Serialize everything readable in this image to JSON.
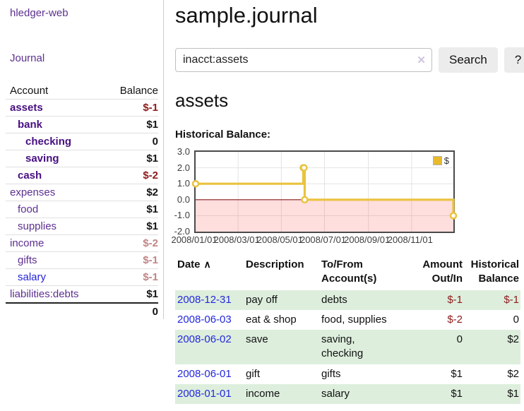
{
  "app": {
    "brand": "hledger-web"
  },
  "sidebar": {
    "journal_link": "Journal",
    "col_account": "Account",
    "col_balance": "Balance",
    "accounts": [
      {
        "name": "assets",
        "level": 1,
        "bold": true,
        "color": "purple",
        "balance": "$-1",
        "tone": "neg-dark"
      },
      {
        "name": "bank",
        "level": 2,
        "bold": true,
        "color": "purple",
        "balance": "$1",
        "tone": "default"
      },
      {
        "name": "checking",
        "level": 3,
        "bold": true,
        "color": "purple",
        "balance": "0",
        "tone": "default"
      },
      {
        "name": "saving",
        "level": 3,
        "bold": true,
        "color": "purple",
        "balance": "$1",
        "tone": "default"
      },
      {
        "name": "cash",
        "level": 2,
        "bold": true,
        "color": "purple",
        "balance": "$-2",
        "tone": "neg-dark"
      },
      {
        "name": "expenses",
        "level": 1,
        "bold": false,
        "color": "purple",
        "balance": "$2",
        "tone": "default"
      },
      {
        "name": "food",
        "level": 2,
        "bold": false,
        "color": "purple",
        "balance": "$1",
        "tone": "default"
      },
      {
        "name": "supplies",
        "level": 2,
        "bold": false,
        "color": "purple",
        "balance": "$1",
        "tone": "default"
      },
      {
        "name": "income",
        "level": 1,
        "bold": false,
        "color": "purple",
        "balance": "$-2",
        "tone": "neg-light"
      },
      {
        "name": "gifts",
        "level": 2,
        "bold": false,
        "color": "purple",
        "balance": "$-1",
        "tone": "neg-light"
      },
      {
        "name": "salary",
        "level": 2,
        "bold": false,
        "color": "blue",
        "balance": "$-1",
        "tone": "neg-light"
      },
      {
        "name": "liabilities:debts",
        "level": 1,
        "bold": false,
        "color": "purple",
        "balance": "$1",
        "tone": "default"
      }
    ],
    "total": "0"
  },
  "header": {
    "title": "sample.journal"
  },
  "search": {
    "value": "inacct:assets",
    "clear_icon": "✕",
    "button": "Search",
    "help_button": "?"
  },
  "account_page": {
    "heading": "assets",
    "chart_label": "Historical Balance:"
  },
  "chart_data": {
    "type": "line",
    "title": "Historical Balance:",
    "legend": {
      "label": "$",
      "position": "top-right"
    },
    "line_color": "#eac33f",
    "marker": "open-circle",
    "negative_region_fill": "rgba(255,0,0,0.13)",
    "zero_line_color": "#8b1c1c",
    "grid": true,
    "ylim": [
      -2,
      3
    ],
    "y_ticks": [
      {
        "v": 3,
        "label": "3.0"
      },
      {
        "v": 2,
        "label": "2.0"
      },
      {
        "v": 1,
        "label": "1.0"
      },
      {
        "v": 0,
        "label": "0.0"
      },
      {
        "v": -1,
        "label": "-1.0"
      },
      {
        "v": -2,
        "label": "-2.0"
      }
    ],
    "x_domain_days": [
      0,
      364
    ],
    "x_ticks": [
      {
        "day": 0,
        "label": "2008/01/01"
      },
      {
        "day": 60,
        "label": "2008/03/01"
      },
      {
        "day": 121,
        "label": "2008/05/01"
      },
      {
        "day": 182,
        "label": "2008/07/01"
      },
      {
        "day": 244,
        "label": "2008/09/01"
      },
      {
        "day": 305,
        "label": "2008/11/01"
      }
    ],
    "points": [
      {
        "date": "2008-01-01",
        "day": 0,
        "value": 1
      },
      {
        "date": "2008-06-01",
        "day": 152,
        "value": 2
      },
      {
        "date": "2008-06-02",
        "day": 153,
        "value": 2
      },
      {
        "date": "2008-06-03",
        "day": 154,
        "value": 0
      },
      {
        "date": "2008-12-31",
        "day": 364,
        "value": -1
      }
    ]
  },
  "transactions": {
    "headers": {
      "date": "Date",
      "sort_icon": "∧",
      "description": "Description",
      "tofrom_1": "To/From",
      "tofrom_2": "Account(s)",
      "amount_1": "Amount",
      "amount_2": "Out/In",
      "balance_1": "Historical",
      "balance_2": "Balance"
    },
    "rows": [
      {
        "date": "2008-12-31",
        "description": "pay off",
        "accounts": "debts",
        "amount": "$-1",
        "amount_neg": true,
        "balance": "$-1",
        "balance_neg": true
      },
      {
        "date": "2008-06-03",
        "description": "eat & shop",
        "accounts": "food, supplies",
        "amount": "$-2",
        "amount_neg": true,
        "balance": "0",
        "balance_neg": false
      },
      {
        "date": "2008-06-02",
        "description": "save",
        "accounts": "saving,\nchecking",
        "amount": "0",
        "amount_neg": false,
        "balance": "$2",
        "balance_neg": false
      },
      {
        "date": "2008-06-01",
        "description": "gift",
        "accounts": "gifts",
        "amount": "$1",
        "amount_neg": false,
        "balance": "$2",
        "balance_neg": false
      },
      {
        "date": "2008-01-01",
        "description": "income",
        "accounts": "salary",
        "amount": "$1",
        "amount_neg": false,
        "balance": "$1",
        "balance_neg": false
      }
    ]
  },
  "colors": {
    "purple_link": "#5d3091",
    "purple_bold": "#470f82",
    "blue_link": "#2323d8",
    "negative_dark": "#8e1b1b",
    "negative_light": "#c08585",
    "row_stripe_green": "#ddeedd",
    "chart_gold": "#eac33f"
  }
}
